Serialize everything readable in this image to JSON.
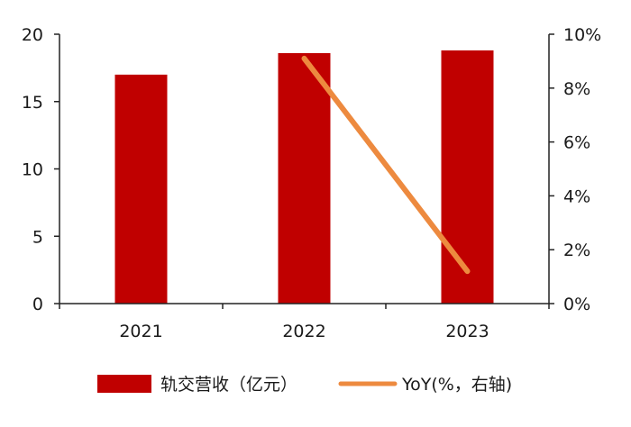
{
  "chart_data": {
    "type": "bar",
    "categories": [
      "2021",
      "2022",
      "2023"
    ],
    "series": [
      {
        "name": "轨交营收（亿元）",
        "type": "bar",
        "axis": "left",
        "color": "#c00000",
        "values": [
          17.0,
          18.6,
          18.8
        ]
      },
      {
        "name": "YoY(%，右轴)",
        "type": "line",
        "axis": "right",
        "color": "#ed8a3f",
        "values": [
          null,
          9.1,
          1.2
        ]
      }
    ],
    "left_axis": {
      "ylim": [
        0,
        20
      ],
      "ticks": [
        0,
        5,
        10,
        15,
        20
      ],
      "tick_labels": [
        "0",
        "5",
        "10",
        "15",
        "20"
      ]
    },
    "right_axis": {
      "ylim": [
        0,
        10
      ],
      "ticks": [
        0,
        2,
        4,
        6,
        8,
        10
      ],
      "tick_labels": [
        "0%",
        "2%",
        "4%",
        "6%",
        "8%",
        "10%"
      ]
    },
    "grid": false,
    "legend": {
      "position": "bottom",
      "items": [
        {
          "label": "轨交营收（亿元）",
          "symbol": "rect",
          "color": "#c00000"
        },
        {
          "label": "YoY(%，右轴)",
          "symbol": "line",
          "color": "#ed8a3f"
        }
      ]
    }
  }
}
